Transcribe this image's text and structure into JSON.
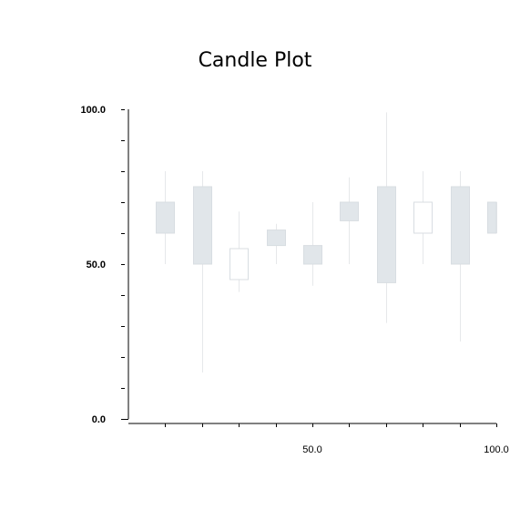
{
  "chart_data": {
    "type": "candlestick",
    "title": "Candle Plot",
    "xlabel": "",
    "ylabel": "",
    "xlim": [
      0,
      100
    ],
    "ylim": [
      0,
      100
    ],
    "x_tick_labels": [
      "50.0",
      "100.0"
    ],
    "y_tick_labels": [
      "0.0",
      "50.0",
      "100.0"
    ],
    "grid": false,
    "colors": {
      "rising_fill": "#ffffff",
      "falling_fill": "#e1e6ea",
      "edge": "#d8dde2",
      "wick": "#e6e8ea",
      "axis": "#000000"
    },
    "candles": [
      {
        "x": 10,
        "open": 70,
        "close": 60,
        "high": 80,
        "low": 50
      },
      {
        "x": 20,
        "open": 75,
        "close": 50,
        "high": 80,
        "low": 15
      },
      {
        "x": 30,
        "open": 45,
        "close": 55,
        "high": 67,
        "low": 41
      },
      {
        "x": 40,
        "open": 61,
        "close": 56,
        "high": 63,
        "low": 50
      },
      {
        "x": 50,
        "open": 56,
        "close": 50,
        "high": 70,
        "low": 43
      },
      {
        "x": 60,
        "open": 70,
        "close": 64,
        "high": 78,
        "low": 50
      },
      {
        "x": 70,
        "open": 75,
        "close": 44,
        "high": 99,
        "low": 31
      },
      {
        "x": 80,
        "open": 60,
        "close": 70,
        "high": 80,
        "low": 50
      },
      {
        "x": 90,
        "open": 75,
        "close": 50,
        "high": 80,
        "low": 25
      },
      {
        "x": 100,
        "open": 70,
        "close": 60,
        "high": 70,
        "low": 60
      }
    ]
  }
}
